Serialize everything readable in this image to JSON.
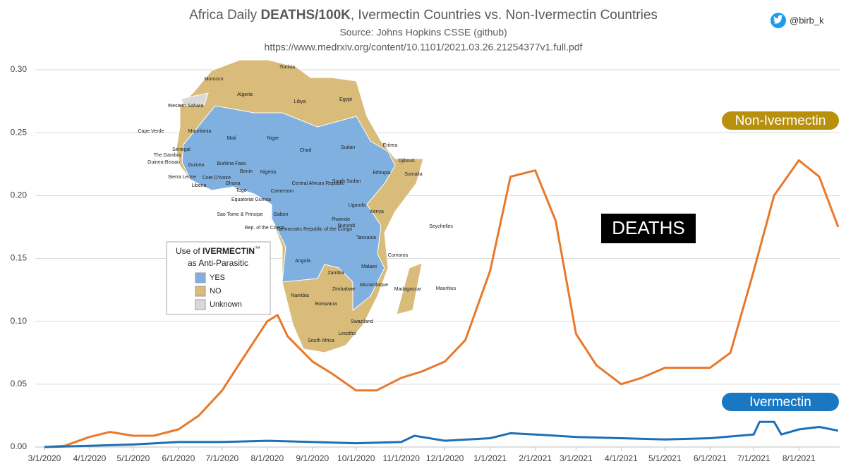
{
  "chart_data": {
    "type": "line",
    "title_parts": [
      "Africa Daily ",
      "DEATHS/100K",
      ", Ivermectin Countries vs. Non-Ivermectin Countries"
    ],
    "subtitle": "Source: Johns Hopkins CSSE (github)",
    "source_url": "https://www.medrxiv.org/content/10.1101/2021.03.26.21254377v1.full.pdf",
    "handle": "@birb_k",
    "annotation": "DEATHS",
    "grid": true,
    "xlim": [
      "3/1/2020",
      "8/29/2021"
    ],
    "xticks": [
      "3/1/2020",
      "4/1/2020",
      "5/1/2020",
      "6/1/2020",
      "7/1/2020",
      "8/1/2020",
      "9/1/2020",
      "10/1/2020",
      "11/1/2020",
      "12/1/2020",
      "1/1/2021",
      "2/1/2021",
      "3/1/2021",
      "4/1/2021",
      "5/1/2021",
      "6/1/2021",
      "7/1/2021",
      "8/1/2021"
    ],
    "ylim": [
      0,
      0.3
    ],
    "yticks": [
      {
        "value": 0,
        "label": "0.00"
      },
      {
        "value": 0.05,
        "label": "0.05"
      },
      {
        "value": 0.1,
        "label": "0.10"
      },
      {
        "value": 0.15,
        "label": "0.15"
      },
      {
        "value": 0.2,
        "label": "0.20"
      },
      {
        "value": 0.25,
        "label": "0.25"
      },
      {
        "value": 0.3,
        "label": "0.30"
      }
    ],
    "series": [
      {
        "name": "Non-Ivermectin",
        "color": "#e8782c",
        "badge_color": "#b8900c",
        "x": [
          "3/1/2020",
          "3/15/2020",
          "4/1/2020",
          "4/15/2020",
          "5/1/2020",
          "5/15/2020",
          "6/1/2020",
          "6/15/2020",
          "7/1/2020",
          "7/15/2020",
          "8/1/2020",
          "8/8/2020",
          "8/15/2020",
          "9/1/2020",
          "9/15/2020",
          "10/1/2020",
          "10/15/2020",
          "11/1/2020",
          "11/15/2020",
          "12/1/2020",
          "12/15/2020",
          "1/1/2021",
          "1/15/2021",
          "2/1/2021",
          "2/15/2021",
          "3/1/2021",
          "3/15/2021",
          "4/1/2021",
          "4/15/2021",
          "5/1/2021",
          "5/15/2021",
          "6/1/2021",
          "6/15/2021",
          "7/1/2021",
          "7/15/2021",
          "8/1/2021",
          "8/15/2021",
          "8/28/2021"
        ],
        "values": [
          0,
          0.001,
          0.008,
          0.012,
          0.009,
          0.009,
          0.014,
          0.025,
          0.045,
          0.07,
          0.1,
          0.105,
          0.088,
          0.068,
          0.058,
          0.045,
          0.045,
          0.055,
          0.06,
          0.068,
          0.085,
          0.14,
          0.215,
          0.22,
          0.18,
          0.09,
          0.065,
          0.05,
          0.055,
          0.063,
          0.063,
          0.063,
          0.075,
          0.14,
          0.2,
          0.228,
          0.215,
          0.175
        ]
      },
      {
        "name": "Ivermectin",
        "color": "#1f6fb4",
        "badge_color": "#1a78c2",
        "x": [
          "3/1/2020",
          "4/1/2020",
          "5/1/2020",
          "6/1/2020",
          "7/1/2020",
          "8/1/2020",
          "9/1/2020",
          "10/1/2020",
          "11/1/2020",
          "11/10/2020",
          "11/15/2020",
          "12/1/2020",
          "1/1/2021",
          "1/15/2021",
          "2/1/2021",
          "3/1/2021",
          "4/1/2021",
          "5/1/2021",
          "6/1/2021",
          "7/1/2021",
          "7/5/2021",
          "7/15/2021",
          "7/20/2021",
          "8/1/2021",
          "8/15/2021",
          "8/28/2021"
        ],
        "values": [
          0,
          0.001,
          0.002,
          0.004,
          0.004,
          0.005,
          0.004,
          0.003,
          0.004,
          0.009,
          0.008,
          0.005,
          0.007,
          0.011,
          0.01,
          0.008,
          0.007,
          0.006,
          0.007,
          0.01,
          0.02,
          0.02,
          0.01,
          0.014,
          0.016,
          0.013
        ]
      }
    ]
  },
  "map": {
    "legend_title_parts": [
      "Use of ",
      "IVERMECTIN",
      "™"
    ],
    "legend_subtitle": "as Anti-Parasitic",
    "legend_items": [
      {
        "label": "YES",
        "color": "#7fb0e0"
      },
      {
        "label": "NO",
        "color": "#d9bc7a"
      },
      {
        "label": "Unknown",
        "color": "#d9d9d9"
      }
    ],
    "countries": [
      "Tunisia",
      "Morocco",
      "Algeria",
      "Libya",
      "Egypt",
      "Western Sahara",
      "Cape Verde",
      "Mauritania",
      "Mali",
      "Niger",
      "Chad",
      "Sudan",
      "Eritrea",
      "Djibouti",
      "Senegal",
      "The Gambia",
      "Guinea-Bissau",
      "Guinea",
      "Burkina Faso",
      "Benin",
      "Nigeria",
      "Ethiopia",
      "Somalia",
      "Sierra Leone",
      "Cote D'Ivoire",
      "Ghana",
      "Liberia",
      "Togo",
      "Central African Republic",
      "South Sudan",
      "Cameroon",
      "Equatorial Guinea",
      "Sao Tome & Principe",
      "Gabon",
      "Uganda",
      "Kenya",
      "Rwanda",
      "Burundi",
      "Democratic Republic of the Congo",
      "Rep. of the Congo",
      "Seychelles",
      "Tanzania",
      "Comoros",
      "Angola",
      "Malawi",
      "Zambia",
      "Mozambique",
      "Madagascar",
      "Mauritius",
      "Zimbabwe",
      "Namibia",
      "Botswana",
      "Swaziland",
      "South Africa",
      "Lesotho"
    ]
  }
}
